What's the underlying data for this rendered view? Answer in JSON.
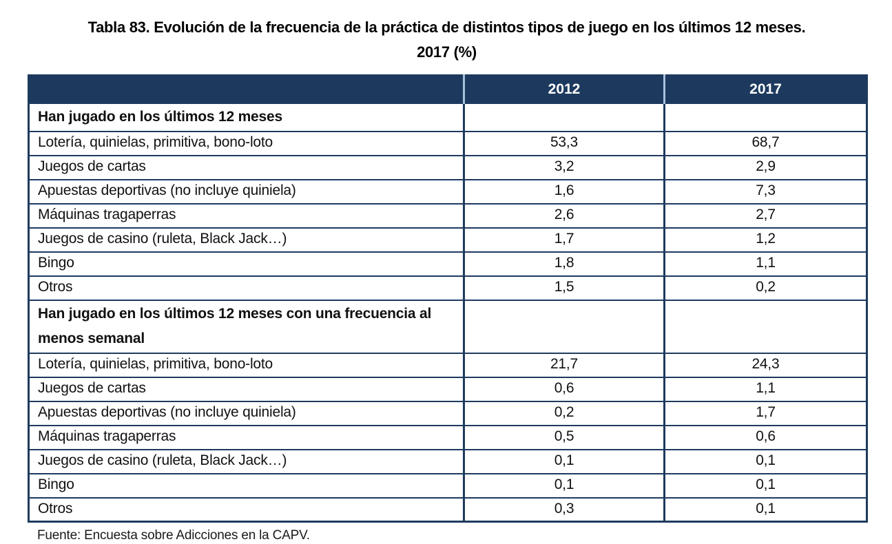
{
  "title": {
    "line1": "Tabla 83. Evolución de la frecuencia de la práctica de distintos tipos de juego en los últimos 12 meses.",
    "line2": "2017 (%)"
  },
  "table": {
    "columns": [
      "",
      "2012",
      "2017"
    ],
    "sections": [
      {
        "header": "Han jugado en los últimos 12 meses",
        "rows": [
          {
            "label": "Lotería, quinielas, primitiva, bono-loto",
            "y2012": "53,3",
            "y2017": "68,7"
          },
          {
            "label": "Juegos de cartas",
            "y2012": "3,2",
            "y2017": "2,9"
          },
          {
            "label": "Apuestas deportivas (no incluye quiniela)",
            "y2012": "1,6",
            "y2017": "7,3"
          },
          {
            "label": "Máquinas tragaperras",
            "y2012": "2,6",
            "y2017": "2,7"
          },
          {
            "label": "Juegos de casino (ruleta, Black Jack…)",
            "y2012": "1,7",
            "y2017": "1,2"
          },
          {
            "label": "Bingo",
            "y2012": "1,8",
            "y2017": "1,1"
          },
          {
            "label": "Otros",
            "y2012": "1,5",
            "y2017": "0,2"
          }
        ]
      },
      {
        "header": "Han jugado en los últimos 12 meses con una frecuencia al menos semanal",
        "rows": [
          {
            "label": "Lotería, quinielas, primitiva, bono-loto",
            "y2012": "21,7",
            "y2017": "24,3"
          },
          {
            "label": "Juegos de cartas",
            "y2012": "0,6",
            "y2017": "1,1"
          },
          {
            "label": "Apuestas deportivas (no incluye quiniela)",
            "y2012": "0,2",
            "y2017": "1,7"
          },
          {
            "label": "Máquinas tragaperras",
            "y2012": "0,5",
            "y2017": "0,6"
          },
          {
            "label": "Juegos de casino (ruleta, Black Jack…)",
            "y2012": "0,1",
            "y2017": "0,1"
          },
          {
            "label": "Bingo",
            "y2012": "0,1",
            "y2017": "0,1"
          },
          {
            "label": "Otros",
            "y2012": "0,3",
            "y2017": "0,1"
          }
        ]
      }
    ]
  },
  "footer": {
    "source": "Fuente: Encuesta sobre Adicciones en la CAPV."
  },
  "colors": {
    "navy": "#1d3a5e",
    "header_divider": "#a9c0dc",
    "header_text": "#ffffff"
  }
}
